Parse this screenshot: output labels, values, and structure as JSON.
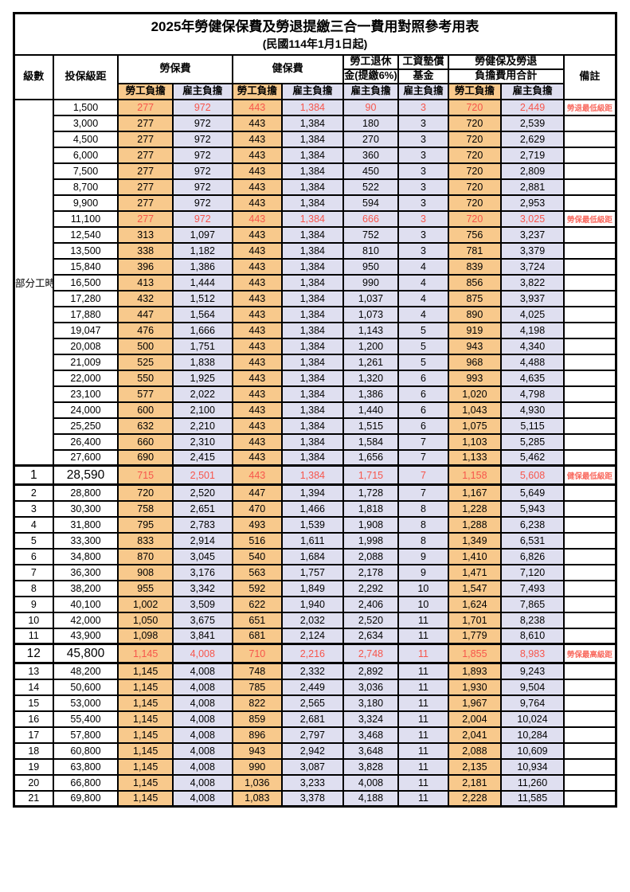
{
  "page": {
    "title": "2025年勞健保保費及勞退提繳三合一費用對照參考用表",
    "subtitle": "(民國114年1月1日起)"
  },
  "colors": {
    "employee_bg": "#F8C98C",
    "employer_bg": "#DFDFF0",
    "highlight_red": "#F7564C",
    "note_red": "#F96B60",
    "border": "#000000"
  },
  "table": {
    "header": {
      "grade": "級數",
      "bracket": "投保級距",
      "labor_insurance": "勞保費",
      "health_insurance": "健保費",
      "pension_line1": "勞工退休",
      "pension_line2": "金(提繳6%)",
      "wage_fund_line1": "工資墊償",
      "wage_fund_line2": "基金",
      "total_line1": "勞健保及勞退",
      "total_line2": "負擔費用合計",
      "remark": "備註",
      "employee": "勞工負擔",
      "employer": "雇主負擔"
    },
    "part_time_label": "部分工時",
    "part_time_rowspan": 23,
    "rows": [
      {
        "grade": "",
        "bracket": "1,500",
        "li_emp": "277",
        "li_er": "972",
        "hi_emp": "443",
        "hi_er": "1,384",
        "pension": "90",
        "wage_fund": "3",
        "tot_emp": "720",
        "tot_er": "2,449",
        "note": "勞退最低級距",
        "highlight": true,
        "big": false
      },
      {
        "grade": "",
        "bracket": "3,000",
        "li_emp": "277",
        "li_er": "972",
        "hi_emp": "443",
        "hi_er": "1,384",
        "pension": "180",
        "wage_fund": "3",
        "tot_emp": "720",
        "tot_er": "2,539",
        "note": "",
        "highlight": false,
        "big": false
      },
      {
        "grade": "",
        "bracket": "4,500",
        "li_emp": "277",
        "li_er": "972",
        "hi_emp": "443",
        "hi_er": "1,384",
        "pension": "270",
        "wage_fund": "3",
        "tot_emp": "720",
        "tot_er": "2,629",
        "note": "",
        "highlight": false,
        "big": false
      },
      {
        "grade": "",
        "bracket": "6,000",
        "li_emp": "277",
        "li_er": "972",
        "hi_emp": "443",
        "hi_er": "1,384",
        "pension": "360",
        "wage_fund": "3",
        "tot_emp": "720",
        "tot_er": "2,719",
        "note": "",
        "highlight": false,
        "big": false
      },
      {
        "grade": "",
        "bracket": "7,500",
        "li_emp": "277",
        "li_er": "972",
        "hi_emp": "443",
        "hi_er": "1,384",
        "pension": "450",
        "wage_fund": "3",
        "tot_emp": "720",
        "tot_er": "2,809",
        "note": "",
        "highlight": false,
        "big": false
      },
      {
        "grade": "",
        "bracket": "8,700",
        "li_emp": "277",
        "li_er": "972",
        "hi_emp": "443",
        "hi_er": "1,384",
        "pension": "522",
        "wage_fund": "3",
        "tot_emp": "720",
        "tot_er": "2,881",
        "note": "",
        "highlight": false,
        "big": false
      },
      {
        "grade": "",
        "bracket": "9,900",
        "li_emp": "277",
        "li_er": "972",
        "hi_emp": "443",
        "hi_er": "1,384",
        "pension": "594",
        "wage_fund": "3",
        "tot_emp": "720",
        "tot_er": "2,953",
        "note": "",
        "highlight": false,
        "big": false
      },
      {
        "grade": "",
        "bracket": "11,100",
        "li_emp": "277",
        "li_er": "972",
        "hi_emp": "443",
        "hi_er": "1,384",
        "pension": "666",
        "wage_fund": "3",
        "tot_emp": "720",
        "tot_er": "3,025",
        "note": "勞保最低級距",
        "highlight": true,
        "big": false
      },
      {
        "grade": "",
        "bracket": "12,540",
        "li_emp": "313",
        "li_er": "1,097",
        "hi_emp": "443",
        "hi_er": "1,384",
        "pension": "752",
        "wage_fund": "3",
        "tot_emp": "756",
        "tot_er": "3,237",
        "note": "",
        "highlight": false,
        "big": false
      },
      {
        "grade": "",
        "bracket": "13,500",
        "li_emp": "338",
        "li_er": "1,182",
        "hi_emp": "443",
        "hi_er": "1,384",
        "pension": "810",
        "wage_fund": "3",
        "tot_emp": "781",
        "tot_er": "3,379",
        "note": "",
        "highlight": false,
        "big": false
      },
      {
        "grade": "",
        "bracket": "15,840",
        "li_emp": "396",
        "li_er": "1,386",
        "hi_emp": "443",
        "hi_er": "1,384",
        "pension": "950",
        "wage_fund": "4",
        "tot_emp": "839",
        "tot_er": "3,724",
        "note": "",
        "highlight": false,
        "big": false
      },
      {
        "grade": "",
        "bracket": "16,500",
        "li_emp": "413",
        "li_er": "1,444",
        "hi_emp": "443",
        "hi_er": "1,384",
        "pension": "990",
        "wage_fund": "4",
        "tot_emp": "856",
        "tot_er": "3,822",
        "note": "",
        "highlight": false,
        "big": false
      },
      {
        "grade": "",
        "bracket": "17,280",
        "li_emp": "432",
        "li_er": "1,512",
        "hi_emp": "443",
        "hi_er": "1,384",
        "pension": "1,037",
        "wage_fund": "4",
        "tot_emp": "875",
        "tot_er": "3,937",
        "note": "",
        "highlight": false,
        "big": false
      },
      {
        "grade": "",
        "bracket": "17,880",
        "li_emp": "447",
        "li_er": "1,564",
        "hi_emp": "443",
        "hi_er": "1,384",
        "pension": "1,073",
        "wage_fund": "4",
        "tot_emp": "890",
        "tot_er": "4,025",
        "note": "",
        "highlight": false,
        "big": false
      },
      {
        "grade": "",
        "bracket": "19,047",
        "li_emp": "476",
        "li_er": "1,666",
        "hi_emp": "443",
        "hi_er": "1,384",
        "pension": "1,143",
        "wage_fund": "5",
        "tot_emp": "919",
        "tot_er": "4,198",
        "note": "",
        "highlight": false,
        "big": false
      },
      {
        "grade": "",
        "bracket": "20,008",
        "li_emp": "500",
        "li_er": "1,751",
        "hi_emp": "443",
        "hi_er": "1,384",
        "pension": "1,200",
        "wage_fund": "5",
        "tot_emp": "943",
        "tot_er": "4,340",
        "note": "",
        "highlight": false,
        "big": false
      },
      {
        "grade": "",
        "bracket": "21,009",
        "li_emp": "525",
        "li_er": "1,838",
        "hi_emp": "443",
        "hi_er": "1,384",
        "pension": "1,261",
        "wage_fund": "5",
        "tot_emp": "968",
        "tot_er": "4,488",
        "note": "",
        "highlight": false,
        "big": false
      },
      {
        "grade": "",
        "bracket": "22,000",
        "li_emp": "550",
        "li_er": "1,925",
        "hi_emp": "443",
        "hi_er": "1,384",
        "pension": "1,320",
        "wage_fund": "6",
        "tot_emp": "993",
        "tot_er": "4,635",
        "note": "",
        "highlight": false,
        "big": false
      },
      {
        "grade": "",
        "bracket": "23,100",
        "li_emp": "577",
        "li_er": "2,022",
        "hi_emp": "443",
        "hi_er": "1,384",
        "pension": "1,386",
        "wage_fund": "6",
        "tot_emp": "1,020",
        "tot_er": "4,798",
        "note": "",
        "highlight": false,
        "big": false
      },
      {
        "grade": "",
        "bracket": "24,000",
        "li_emp": "600",
        "li_er": "2,100",
        "hi_emp": "443",
        "hi_er": "1,384",
        "pension": "1,440",
        "wage_fund": "6",
        "tot_emp": "1,043",
        "tot_er": "4,930",
        "note": "",
        "highlight": false,
        "big": false
      },
      {
        "grade": "",
        "bracket": "25,250",
        "li_emp": "632",
        "li_er": "2,210",
        "hi_emp": "443",
        "hi_er": "1,384",
        "pension": "1,515",
        "wage_fund": "6",
        "tot_emp": "1,075",
        "tot_er": "5,115",
        "note": "",
        "highlight": false,
        "big": false
      },
      {
        "grade": "",
        "bracket": "26,400",
        "li_emp": "660",
        "li_er": "2,310",
        "hi_emp": "443",
        "hi_er": "1,384",
        "pension": "1,584",
        "wage_fund": "7",
        "tot_emp": "1,103",
        "tot_er": "5,285",
        "note": "",
        "highlight": false,
        "big": false
      },
      {
        "grade": "",
        "bracket": "27,600",
        "li_emp": "690",
        "li_er": "2,415",
        "hi_emp": "443",
        "hi_er": "1,384",
        "pension": "1,656",
        "wage_fund": "7",
        "tot_emp": "1,133",
        "tot_er": "5,462",
        "note": "",
        "highlight": false,
        "big": false
      },
      {
        "grade": "1",
        "bracket": "28,590",
        "li_emp": "715",
        "li_er": "2,501",
        "hi_emp": "443",
        "hi_er": "1,384",
        "pension": "1,715",
        "wage_fund": "7",
        "tot_emp": "1,158",
        "tot_er": "5,608",
        "note": "健保最低級距",
        "highlight": true,
        "big": true
      },
      {
        "grade": "2",
        "bracket": "28,800",
        "li_emp": "720",
        "li_er": "2,520",
        "hi_emp": "447",
        "hi_er": "1,394",
        "pension": "1,728",
        "wage_fund": "7",
        "tot_emp": "1,167",
        "tot_er": "5,649",
        "note": "",
        "highlight": false,
        "big": false
      },
      {
        "grade": "3",
        "bracket": "30,300",
        "li_emp": "758",
        "li_er": "2,651",
        "hi_emp": "470",
        "hi_er": "1,466",
        "pension": "1,818",
        "wage_fund": "8",
        "tot_emp": "1,228",
        "tot_er": "5,943",
        "note": "",
        "highlight": false,
        "big": false
      },
      {
        "grade": "4",
        "bracket": "31,800",
        "li_emp": "795",
        "li_er": "2,783",
        "hi_emp": "493",
        "hi_er": "1,539",
        "pension": "1,908",
        "wage_fund": "8",
        "tot_emp": "1,288",
        "tot_er": "6,238",
        "note": "",
        "highlight": false,
        "big": false
      },
      {
        "grade": "5",
        "bracket": "33,300",
        "li_emp": "833",
        "li_er": "2,914",
        "hi_emp": "516",
        "hi_er": "1,611",
        "pension": "1,998",
        "wage_fund": "8",
        "tot_emp": "1,349",
        "tot_er": "6,531",
        "note": "",
        "highlight": false,
        "big": false
      },
      {
        "grade": "6",
        "bracket": "34,800",
        "li_emp": "870",
        "li_er": "3,045",
        "hi_emp": "540",
        "hi_er": "1,684",
        "pension": "2,088",
        "wage_fund": "9",
        "tot_emp": "1,410",
        "tot_er": "6,826",
        "note": "",
        "highlight": false,
        "big": false
      },
      {
        "grade": "7",
        "bracket": "36,300",
        "li_emp": "908",
        "li_er": "3,176",
        "hi_emp": "563",
        "hi_er": "1,757",
        "pension": "2,178",
        "wage_fund": "9",
        "tot_emp": "1,471",
        "tot_er": "7,120",
        "note": "",
        "highlight": false,
        "big": false
      },
      {
        "grade": "8",
        "bracket": "38,200",
        "li_emp": "955",
        "li_er": "3,342",
        "hi_emp": "592",
        "hi_er": "1,849",
        "pension": "2,292",
        "wage_fund": "10",
        "tot_emp": "1,547",
        "tot_er": "7,493",
        "note": "",
        "highlight": false,
        "big": false
      },
      {
        "grade": "9",
        "bracket": "40,100",
        "li_emp": "1,002",
        "li_er": "3,509",
        "hi_emp": "622",
        "hi_er": "1,940",
        "pension": "2,406",
        "wage_fund": "10",
        "tot_emp": "1,624",
        "tot_er": "7,865",
        "note": "",
        "highlight": false,
        "big": false
      },
      {
        "grade": "10",
        "bracket": "42,000",
        "li_emp": "1,050",
        "li_er": "3,675",
        "hi_emp": "651",
        "hi_er": "2,032",
        "pension": "2,520",
        "wage_fund": "11",
        "tot_emp": "1,701",
        "tot_er": "8,238",
        "note": "",
        "highlight": false,
        "big": false
      },
      {
        "grade": "11",
        "bracket": "43,900",
        "li_emp": "1,098",
        "li_er": "3,841",
        "hi_emp": "681",
        "hi_er": "2,124",
        "pension": "2,634",
        "wage_fund": "11",
        "tot_emp": "1,779",
        "tot_er": "8,610",
        "note": "",
        "highlight": false,
        "big": false
      },
      {
        "grade": "12",
        "bracket": "45,800",
        "li_emp": "1,145",
        "li_er": "4,008",
        "hi_emp": "710",
        "hi_er": "2,216",
        "pension": "2,748",
        "wage_fund": "11",
        "tot_emp": "1,855",
        "tot_er": "8,983",
        "note": "勞保最高級距",
        "highlight": true,
        "big": true
      },
      {
        "grade": "13",
        "bracket": "48,200",
        "li_emp": "1,145",
        "li_er": "4,008",
        "hi_emp": "748",
        "hi_er": "2,332",
        "pension": "2,892",
        "wage_fund": "11",
        "tot_emp": "1,893",
        "tot_er": "9,243",
        "note": "",
        "highlight": false,
        "big": false
      },
      {
        "grade": "14",
        "bracket": "50,600",
        "li_emp": "1,145",
        "li_er": "4,008",
        "hi_emp": "785",
        "hi_er": "2,449",
        "pension": "3,036",
        "wage_fund": "11",
        "tot_emp": "1,930",
        "tot_er": "9,504",
        "note": "",
        "highlight": false,
        "big": false
      },
      {
        "grade": "15",
        "bracket": "53,000",
        "li_emp": "1,145",
        "li_er": "4,008",
        "hi_emp": "822",
        "hi_er": "2,565",
        "pension": "3,180",
        "wage_fund": "11",
        "tot_emp": "1,967",
        "tot_er": "9,764",
        "note": "",
        "highlight": false,
        "big": false
      },
      {
        "grade": "16",
        "bracket": "55,400",
        "li_emp": "1,145",
        "li_er": "4,008",
        "hi_emp": "859",
        "hi_er": "2,681",
        "pension": "3,324",
        "wage_fund": "11",
        "tot_emp": "2,004",
        "tot_er": "10,024",
        "note": "",
        "highlight": false,
        "big": false
      },
      {
        "grade": "17",
        "bracket": "57,800",
        "li_emp": "1,145",
        "li_er": "4,008",
        "hi_emp": "896",
        "hi_er": "2,797",
        "pension": "3,468",
        "wage_fund": "11",
        "tot_emp": "2,041",
        "tot_er": "10,284",
        "note": "",
        "highlight": false,
        "big": false
      },
      {
        "grade": "18",
        "bracket": "60,800",
        "li_emp": "1,145",
        "li_er": "4,008",
        "hi_emp": "943",
        "hi_er": "2,942",
        "pension": "3,648",
        "wage_fund": "11",
        "tot_emp": "2,088",
        "tot_er": "10,609",
        "note": "",
        "highlight": false,
        "big": false
      },
      {
        "grade": "19",
        "bracket": "63,800",
        "li_emp": "1,145",
        "li_er": "4,008",
        "hi_emp": "990",
        "hi_er": "3,087",
        "pension": "3,828",
        "wage_fund": "11",
        "tot_emp": "2,135",
        "tot_er": "10,934",
        "note": "",
        "highlight": false,
        "big": false
      },
      {
        "grade": "20",
        "bracket": "66,800",
        "li_emp": "1,145",
        "li_er": "4,008",
        "hi_emp": "1,036",
        "hi_er": "3,233",
        "pension": "4,008",
        "wage_fund": "11",
        "tot_emp": "2,181",
        "tot_er": "11,260",
        "note": "",
        "highlight": false,
        "big": false
      },
      {
        "grade": "21",
        "bracket": "69,800",
        "li_emp": "1,145",
        "li_er": "4,008",
        "hi_emp": "1,083",
        "hi_er": "3,378",
        "pension": "4,188",
        "wage_fund": "11",
        "tot_emp": "2,228",
        "tot_er": "11,585",
        "note": "",
        "highlight": false,
        "big": false
      }
    ]
  }
}
